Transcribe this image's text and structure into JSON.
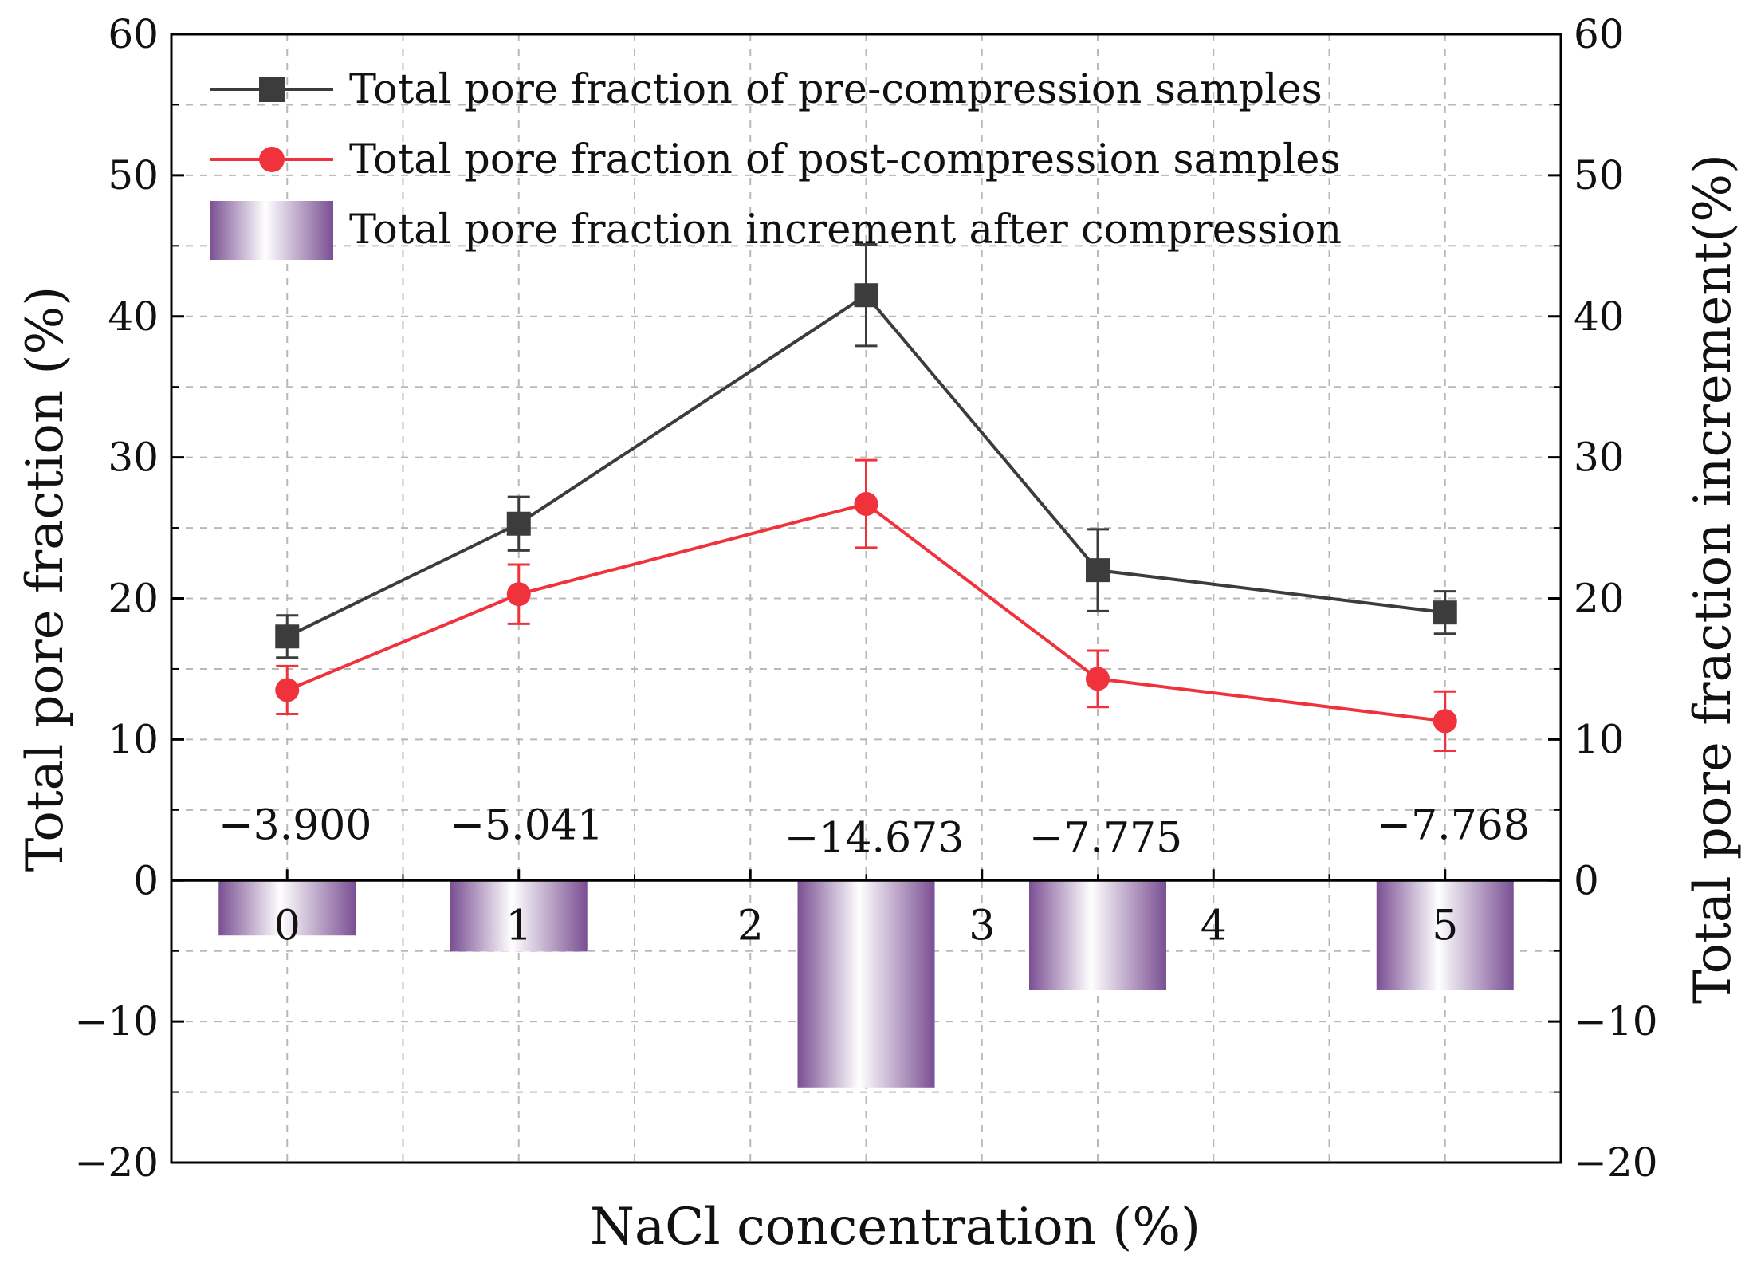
{
  "chart_data": {
    "type": "line+bar",
    "title": "",
    "xlabel": "NaCl concentration (%)",
    "ylabel_left": "Total pore fraction (%)",
    "ylabel_right": "Total pore fraction increment(%)",
    "xlim": [
      -0.5,
      5.5
    ],
    "ylim": [
      -20,
      60
    ],
    "x_ticks": [
      "0",
      "1",
      "2",
      "3",
      "4",
      "5"
    ],
    "y_ticks_left": [
      "60",
      "50",
      "40",
      "30",
      "20",
      "10",
      "0",
      "−10",
      "−20"
    ],
    "y_ticks_right": [
      "60",
      "50",
      "40",
      "30",
      "20",
      "10",
      "0",
      "−10",
      "−20"
    ],
    "grid": true,
    "series": [
      {
        "name": "Total pore fraction of pre-compression samples",
        "kind": "line",
        "color": "#3c3c3c",
        "marker": "square",
        "x": [
          0,
          1,
          2.5,
          3.5,
          5
        ],
        "values": [
          17.3,
          25.3,
          41.5,
          22.0,
          19.0
        ],
        "errors": [
          1.5,
          1.9,
          3.6,
          2.9,
          1.5
        ]
      },
      {
        "name": "Total pore fraction of post-compression samples",
        "kind": "line",
        "color": "#f0323c",
        "marker": "circle",
        "x": [
          0,
          1,
          2.5,
          3.5,
          5
        ],
        "values": [
          13.5,
          20.3,
          26.7,
          14.3,
          11.3
        ],
        "errors": [
          1.7,
          2.1,
          3.1,
          2.0,
          2.1
        ]
      },
      {
        "name": "Total pore fraction increment after compression",
        "kind": "bar",
        "color": "#8a5fa0",
        "x": [
          0,
          1,
          2.5,
          3.5,
          5
        ],
        "values": [
          -3.9,
          -5.041,
          -14.673,
          -7.775,
          -7.768
        ],
        "labels": [
          "−3.900",
          "−5.041",
          "−14.673",
          "−7.775",
          "−7.768"
        ]
      }
    ],
    "legend_position": "top-left"
  }
}
